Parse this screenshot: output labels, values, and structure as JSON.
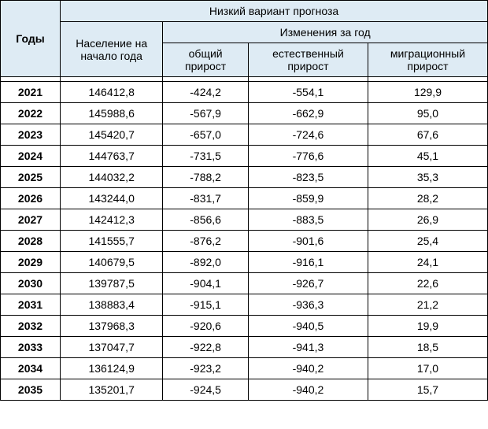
{
  "table": {
    "header": {
      "years": "Годы",
      "main_group": "Низкий вариант прогноза",
      "population": "Население на начало года",
      "changes_group": "Изменения за год",
      "total_growth": "общий прирост",
      "natural_growth": "естественный прирост",
      "migration_growth": "миграционный прирост"
    },
    "header_bg": "#deebf4",
    "border_color": "#000000",
    "font_family": "Arial",
    "cell_fontsize": 14,
    "rows": [
      {
        "year": "2021",
        "population": "146412,8",
        "total": "-424,2",
        "natural": "-554,1",
        "migration": "129,9"
      },
      {
        "year": "2022",
        "population": "145988,6",
        "total": "-567,9",
        "natural": "-662,9",
        "migration": "95,0"
      },
      {
        "year": "2023",
        "population": "145420,7",
        "total": "-657,0",
        "natural": "-724,6",
        "migration": "67,6"
      },
      {
        "year": "2024",
        "population": "144763,7",
        "total": "-731,5",
        "natural": "-776,6",
        "migration": "45,1"
      },
      {
        "year": "2025",
        "population": "144032,2",
        "total": "-788,2",
        "natural": "-823,5",
        "migration": "35,3"
      },
      {
        "year": "2026",
        "population": "143244,0",
        "total": "-831,7",
        "natural": "-859,9",
        "migration": "28,2"
      },
      {
        "year": "2027",
        "population": "142412,3",
        "total": "-856,6",
        "natural": "-883,5",
        "migration": "26,9"
      },
      {
        "year": "2028",
        "population": "141555,7",
        "total": "-876,2",
        "natural": "-901,6",
        "migration": "25,4"
      },
      {
        "year": "2029",
        "population": "140679,5",
        "total": "-892,0",
        "natural": "-916,1",
        "migration": "24,1"
      },
      {
        "year": "2030",
        "population": "139787,5",
        "total": "-904,1",
        "natural": "-926,7",
        "migration": "22,6"
      },
      {
        "year": "2031",
        "population": "138883,4",
        "total": "-915,1",
        "natural": "-936,3",
        "migration": "21,2"
      },
      {
        "year": "2032",
        "population": "137968,3",
        "total": "-920,6",
        "natural": "-940,5",
        "migration": "19,9"
      },
      {
        "year": "2033",
        "population": "137047,7",
        "total": "-922,8",
        "natural": "-941,3",
        "migration": "18,5"
      },
      {
        "year": "2034",
        "population": "136124,9",
        "total": "-923,2",
        "natural": "-940,2",
        "migration": "17,0"
      },
      {
        "year": "2035",
        "population": "135201,7",
        "total": "-924,5",
        "natural": "-940,2",
        "migration": "15,7"
      }
    ]
  }
}
